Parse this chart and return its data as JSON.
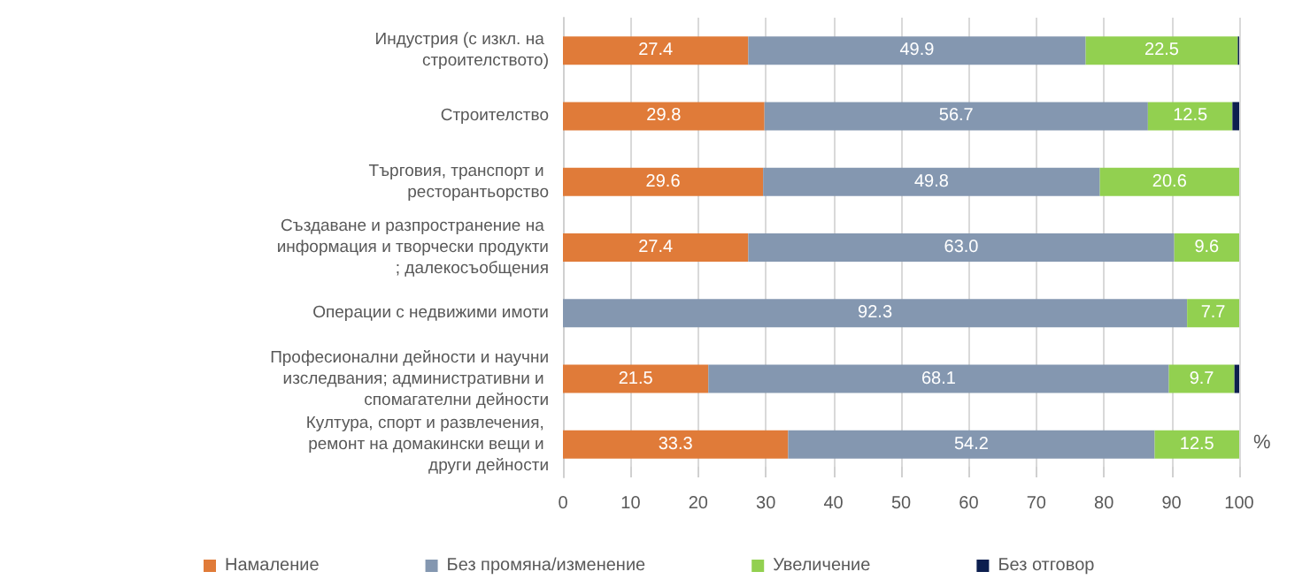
{
  "chart_data": {
    "type": "bar",
    "orientation": "horizontal",
    "stacked": true,
    "xlabel": "%",
    "categories": [
      "Индустрия (с изкл. на строителството)",
      "Строителство",
      "Търговия, транспорт и ресторантьорство",
      "Създаване и разпространение на информация и творчески продукти; далекосъобщения",
      "Операции с недвижими имоти",
      "Професионални дейности и научни изследвания; административни и спомагателни дейности",
      "Култура, спорт и развлечения, ремонт на домакински вещи и други дейности"
    ],
    "series": [
      {
        "name": "Намаление",
        "color": "#e07b39",
        "values": [
          27.4,
          29.8,
          29.6,
          27.4,
          null,
          21.5,
          33.3
        ],
        "value_labels": [
          "27.4",
          "29.8",
          "29.6",
          "27.4",
          null,
          "21.5",
          "33.3"
        ]
      },
      {
        "name": "Без промяна/изменение",
        "color": "#8497b0",
        "values": [
          49.9,
          56.7,
          49.8,
          63.0,
          92.3,
          68.1,
          54.2
        ],
        "value_labels": [
          "49.9",
          "56.7",
          "49.8",
          "63.0",
          "92.3",
          "68.1",
          "54.2"
        ]
      },
      {
        "name": "Увеличение",
        "color": "#92d050",
        "values": [
          22.5,
          12.5,
          20.6,
          9.6,
          7.7,
          9.7,
          12.5
        ],
        "value_labels": [
          "22.5",
          "12.5",
          "20.6",
          "9.6",
          "7.7",
          "9.7",
          "12.5"
        ]
      },
      {
        "name": "Без отговор",
        "color": "#0d1f4f",
        "values": [
          0.2,
          1.0,
          null,
          null,
          null,
          0.7,
          null
        ]
      }
    ],
    "xlim": [
      0,
      100
    ],
    "xticks": [
      0,
      10,
      20,
      30,
      40,
      50,
      60,
      70,
      80,
      90,
      100
    ],
    "grid": "x",
    "legend": "bottom"
  }
}
